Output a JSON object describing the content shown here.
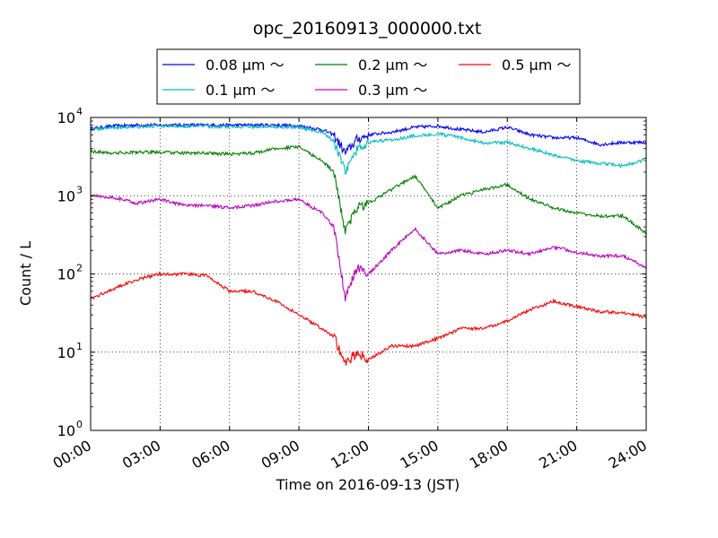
{
  "chart_data": {
    "type": "line",
    "title": "opc_20160913_000000.txt",
    "xlabel": "Time on 2016-09-13 (JST)",
    "ylabel": "Count / L",
    "y_scale": "log",
    "ylim": [
      1,
      10000
    ],
    "xlim": [
      "00:00",
      "24:00"
    ],
    "grid": true,
    "legend_position": "top-center",
    "x_ticks": [
      "00:00",
      "03:00",
      "06:00",
      "09:00",
      "12:00",
      "15:00",
      "18:00",
      "21:00",
      "24:00"
    ],
    "y_ticks": [
      {
        "value": 1,
        "base": "10",
        "exp": "0"
      },
      {
        "value": 10,
        "base": "10",
        "exp": "1"
      },
      {
        "value": 100,
        "base": "10",
        "exp": "2"
      },
      {
        "value": 1000,
        "base": "10",
        "exp": "3"
      },
      {
        "value": 10000,
        "base": "10",
        "exp": "4"
      }
    ],
    "x": [
      "00:00",
      "01:00",
      "02:00",
      "03:00",
      "04:00",
      "05:00",
      "06:00",
      "07:00",
      "08:00",
      "09:00",
      "10:00",
      "10:30",
      "11:00",
      "11:30",
      "12:00",
      "13:00",
      "14:00",
      "15:00",
      "16:00",
      "17:00",
      "18:00",
      "19:00",
      "20:00",
      "21:00",
      "22:00",
      "23:00",
      "24:00"
    ],
    "series": [
      {
        "name": "0.08 μm ～",
        "color": "#0000ff",
        "values": [
          7200,
          7800,
          8000,
          8000,
          8000,
          8000,
          8000,
          8000,
          8000,
          7800,
          7000,
          6000,
          3500,
          5200,
          6000,
          6500,
          7500,
          7800,
          7000,
          6500,
          7500,
          6000,
          5500,
          5500,
          4500,
          4800,
          4800
        ]
      },
      {
        "name": "0.1 μm ～",
        "color": "#00bfbf",
        "values": [
          7000,
          7500,
          7600,
          7700,
          7700,
          7700,
          7600,
          7600,
          7600,
          7500,
          6500,
          5000,
          2000,
          3800,
          4800,
          5200,
          5800,
          6200,
          5500,
          4700,
          4800,
          4000,
          3300,
          2800,
          2600,
          2400,
          2900
        ]
      },
      {
        "name": "0.2 μm ～",
        "color": "#008000",
        "values": [
          3700,
          3500,
          3600,
          3600,
          3500,
          3500,
          3400,
          3500,
          4000,
          4200,
          2800,
          2000,
          350,
          700,
          800,
          1200,
          1800,
          700,
          1000,
          1200,
          1400,
          900,
          700,
          600,
          550,
          550,
          330
        ]
      },
      {
        "name": "0.3 μm ～",
        "color": "#bf00bf",
        "values": [
          1000,
          950,
          800,
          900,
          750,
          750,
          700,
          750,
          850,
          900,
          600,
          400,
          50,
          120,
          100,
          200,
          380,
          180,
          200,
          180,
          200,
          180,
          220,
          190,
          170,
          170,
          120
        ]
      },
      {
        "name": "0.5 μm ～",
        "color": "#ff0000",
        "values": [
          48,
          65,
          85,
          100,
          100,
          95,
          60,
          60,
          45,
          30,
          20,
          16,
          7,
          10,
          8,
          12,
          12,
          15,
          20,
          20,
          25,
          35,
          45,
          38,
          33,
          32,
          28
        ]
      }
    ]
  }
}
